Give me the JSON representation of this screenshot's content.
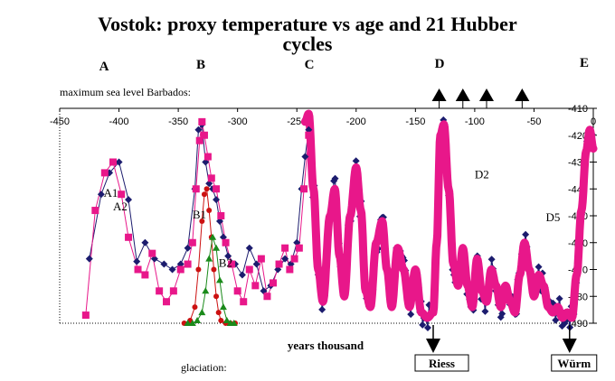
{
  "chart_data": {
    "type": "line",
    "title": "Vostok: proxy temperature vs age and 21 Hubber",
    "title_line2": "cycles",
    "xlabel": "years thousand",
    "xlim": [
      -450,
      0
    ],
    "ylim": [
      -490,
      -410
    ],
    "x_ticks": [
      "-450",
      "-400",
      "-350",
      "-300",
      "-250",
      "-200",
      "-150",
      "-100",
      "-50",
      "0"
    ],
    "y_ticks": [
      "-410",
      "-420",
      "-430",
      "-440",
      "-450",
      "-460",
      "-470",
      "-480",
      "-490"
    ],
    "period_labels": [
      "A",
      "B",
      "C",
      "D",
      "E"
    ],
    "sea_level_label": "maximum sea level Barbados:",
    "glaciation_label": "glaciation:",
    "glaciations": [
      {
        "name": "Riess",
        "x": -135
      },
      {
        "name": "Würm",
        "x": -20
      }
    ],
    "sea_level_markers": [
      -130,
      -110,
      -90,
      -60
    ],
    "annotations": [
      {
        "text": "A1",
        "x": -413,
        "y": -443
      },
      {
        "text": "A2",
        "x": -405,
        "y": -448
      },
      {
        "text": "B1",
        "x": -338,
        "y": -451
      },
      {
        "text": "B2",
        "x": -316,
        "y": -469
      },
      {
        "text": "D2",
        "x": -100,
        "y": -436
      },
      {
        "text": "D5",
        "x": -40,
        "y": -452
      }
    ],
    "series": [
      {
        "color": "#1c1c6e",
        "marker": "diamond",
        "x": [
          -425,
          -415,
          -408,
          -400,
          -392,
          -385,
          -378,
          -370,
          -362,
          -355,
          -348,
          -342,
          -336,
          -333,
          -330,
          -327,
          -324,
          -321,
          -318,
          -315,
          -312,
          -308,
          -302,
          -296,
          -290,
          -284,
          -278,
          -272,
          -266,
          -260,
          -255,
          -250,
          -246,
          -243,
          -240
        ],
        "y": [
          -466,
          -442,
          -434,
          -430,
          -444,
          -467,
          -460,
          -466,
          -468,
          -470,
          -468,
          -462,
          -440,
          -418,
          -416,
          -430,
          -438,
          -440,
          -444,
          -452,
          -458,
          -465,
          -468,
          -472,
          -462,
          -468,
          -478,
          -476,
          -470,
          -466,
          -468,
          -460,
          -440,
          -428,
          -418
        ]
      },
      {
        "color": "#e8178a",
        "marker": "square",
        "x": [
          -428,
          -420,
          -412,
          -405,
          -398,
          -392,
          -384,
          -378,
          -372,
          -366,
          -360,
          -354,
          -348,
          -342,
          -338,
          -335,
          -332,
          -330,
          -328,
          -325,
          -322,
          -318,
          -314,
          -310,
          -305,
          -300,
          -295,
          -290,
          -285,
          -280,
          -275,
          -270,
          -265,
          -260,
          -256,
          -252,
          -248,
          -244,
          -240
        ],
        "y": [
          -487,
          -448,
          -434,
          -430,
          -442,
          -458,
          -470,
          -472,
          -464,
          -478,
          -482,
          -478,
          -470,
          -468,
          -460,
          -440,
          -422,
          -415,
          -420,
          -428,
          -436,
          -440,
          -450,
          -460,
          -468,
          -478,
          -482,
          -470,
          -476,
          -466,
          -480,
          -475,
          -468,
          -462,
          -470,
          -466,
          -462,
          -440,
          -420
        ]
      },
      {
        "color": "#cc1111",
        "marker": "circle",
        "x": [
          -345,
          -340,
          -336,
          -333,
          -330,
          -328,
          -326,
          -324,
          -322,
          -320,
          -318,
          -316,
          -314,
          -310,
          -306,
          -302
        ],
        "y": [
          -490,
          -489,
          -484,
          -470,
          -452,
          -442,
          -440,
          -448,
          -458,
          -470,
          -480,
          -486,
          -489,
          -490,
          -490,
          -490
        ]
      },
      {
        "color": "#1a8a1a",
        "marker": "triangle",
        "x": [
          -342,
          -338,
          -334,
          -330,
          -327,
          -324,
          -321,
          -318,
          -315,
          -312,
          -309,
          -306,
          -303
        ],
        "y": [
          -490,
          -490,
          -489,
          -486,
          -478,
          -466,
          -458,
          -462,
          -474,
          -484,
          -489,
          -490,
          -490
        ]
      },
      {
        "color": "#e8178a",
        "style": "thick",
        "x_start": -243,
        "x_end": 0,
        "breakpoints": [
          [
            -243,
            -415
          ],
          [
            -240,
            -412
          ],
          [
            -236,
            -440
          ],
          [
            -232,
            -470
          ],
          [
            -228,
            -482
          ],
          [
            -222,
            -450
          ],
          [
            -218,
            -440
          ],
          [
            -214,
            -465
          ],
          [
            -210,
            -480
          ],
          [
            -205,
            -450
          ],
          [
            -200,
            -432
          ],
          [
            -196,
            -448
          ],
          [
            -192,
            -478
          ],
          [
            -188,
            -484
          ],
          [
            -183,
            -460
          ],
          [
            -178,
            -452
          ],
          [
            -174,
            -470
          ],
          [
            -170,
            -484
          ],
          [
            -165,
            -462
          ],
          [
            -160,
            -470
          ],
          [
            -155,
            -484
          ],
          [
            -150,
            -470
          ],
          [
            -145,
            -486
          ],
          [
            -140,
            -488
          ],
          [
            -135,
            -486
          ],
          [
            -132,
            -460
          ],
          [
            -129,
            -420
          ],
          [
            -126,
            -416
          ],
          [
            -122,
            -440
          ],
          [
            -118,
            -468
          ],
          [
            -114,
            -476
          ],
          [
            -110,
            -462
          ],
          [
            -106,
            -476
          ],
          [
            -102,
            -484
          ],
          [
            -98,
            -466
          ],
          [
            -94,
            -478
          ],
          [
            -90,
            -482
          ],
          [
            -86,
            -470
          ],
          [
            -82,
            -476
          ],
          [
            -78,
            -484
          ],
          [
            -74,
            -476
          ],
          [
            -70,
            -482
          ],
          [
            -66,
            -486
          ],
          [
            -62,
            -472
          ],
          [
            -58,
            -460
          ],
          [
            -54,
            -470
          ],
          [
            -50,
            -480
          ],
          [
            -46,
            -472
          ],
          [
            -42,
            -476
          ],
          [
            -38,
            -484
          ],
          [
            -34,
            -486
          ],
          [
            -30,
            -484
          ],
          [
            -26,
            -488
          ],
          [
            -22,
            -486
          ],
          [
            -18,
            -488
          ],
          [
            -14,
            -472
          ],
          [
            -10,
            -448
          ],
          [
            -6,
            -426
          ],
          [
            -3,
            -418
          ],
          [
            0,
            -425
          ]
        ]
      },
      {
        "color": "#1c1c6e",
        "marker": "diamond",
        "style": "dense",
        "x_start": -243,
        "x_end": 0
      }
    ]
  }
}
